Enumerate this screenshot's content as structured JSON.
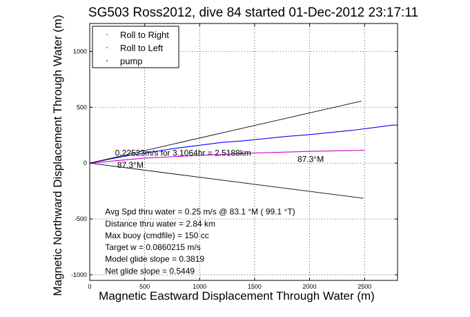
{
  "chart_data": {
    "type": "line",
    "title": "SG503 Ross2012, dive 84 started 01-Dec-2012 23:17:11",
    "xlabel": "Magnetic Eastward Displacement Through Water (m)",
    "ylabel": "Magnetic Northward Displacement Through Water (m)",
    "xlim": [
      0,
      2800
    ],
    "ylim": [
      -1050,
      1250
    ],
    "xticks": [
      0,
      500,
      1000,
      1500,
      2000,
      2500
    ],
    "yticks": [
      -1000,
      -500,
      0,
      500,
      1000
    ],
    "grid": true,
    "legend": {
      "placement": "top-left",
      "entries": [
        {
          "name": "Roll to Right",
          "color": "#00b000"
        },
        {
          "name": "Roll to Left",
          "color": "#ff0000"
        },
        {
          "name": "pump",
          "color": "#000000"
        }
      ]
    },
    "series": [
      {
        "name": "track_blue",
        "color": "#0000ff",
        "x": [
          0,
          200,
          400,
          600,
          800,
          1000,
          1200,
          1400,
          1600,
          1800,
          2000,
          2200,
          2400,
          2600,
          2750,
          2800
        ],
        "y": [
          0,
          40,
          75,
          105,
          135,
          160,
          185,
          200,
          220,
          240,
          255,
          275,
          295,
          320,
          340,
          340
        ]
      },
      {
        "name": "track_magenta",
        "color": "#cc00cc",
        "x": [
          0,
          500,
          1000,
          1500,
          2000,
          2500
        ],
        "y": [
          0,
          45,
          70,
          90,
          105,
          115
        ]
      },
      {
        "name": "cone_upper",
        "color": "#000000",
        "x": [
          0,
          2470
        ],
        "y": [
          0,
          555
        ]
      },
      {
        "name": "cone_lower",
        "color": "#000000",
        "x": [
          0,
          2490
        ],
        "y": [
          0,
          -315
        ]
      }
    ],
    "annotations": [
      {
        "text": "0.22523m/s for 3.1064hr = 2.5188km",
        "x": 230,
        "y": 65
      },
      {
        "text": "87.3°M",
        "x": 250,
        "y": -42
      },
      {
        "text": "87.3°M",
        "x": 1890,
        "y": 10
      },
      {
        "text": "Avg Spd thru water =  0.25 m/s @  83.1   °M ( 99.1 °T)",
        "x": 140,
        "y": -460
      },
      {
        "text": "Distance thru water =  2.84 km",
        "x": 140,
        "y": -568
      },
      {
        "text": "Max buoy (cmdfile) = 150 cc",
        "x": 140,
        "y": -672
      },
      {
        "text": "Target w = 0.0860215 m/s",
        "x": 140,
        "y": -778
      },
      {
        "text": "Model glide slope = 0.3819",
        "x": 140,
        "y": -884
      },
      {
        "text": "Net glide slope = 0.5449",
        "x": 140,
        "y": -990
      }
    ]
  }
}
